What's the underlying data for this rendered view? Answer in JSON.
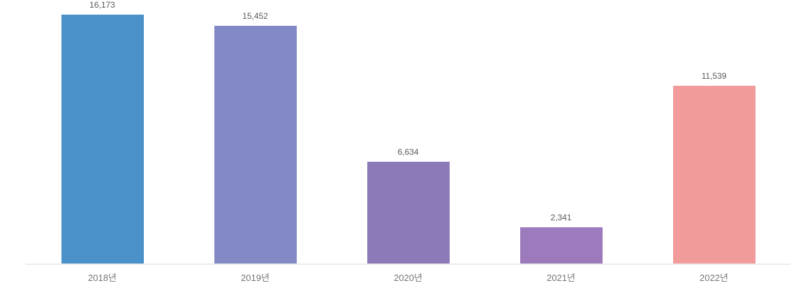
{
  "chart_data": {
    "type": "bar",
    "title": "",
    "xlabel": "",
    "ylabel": "",
    "categories": [
      "2018년",
      "2019년",
      "2020년",
      "2021년",
      "2022년"
    ],
    "values": [
      16173,
      15452,
      6634,
      2341,
      11539
    ],
    "value_labels": [
      "16,173",
      "15,452",
      "6,634",
      "2,341",
      "11,539"
    ],
    "bar_colors": [
      "#4a90c9",
      "#8289c5",
      "#8c79b8",
      "#9c7abc",
      "#f19c9b"
    ],
    "ylim": [
      0,
      16173
    ],
    "grid": false,
    "legend_position": "none",
    "background_color": "#ffffff",
    "axis_line_color": "#ececec",
    "value_label_color": "#595959",
    "tick_label_color": "#757575"
  }
}
